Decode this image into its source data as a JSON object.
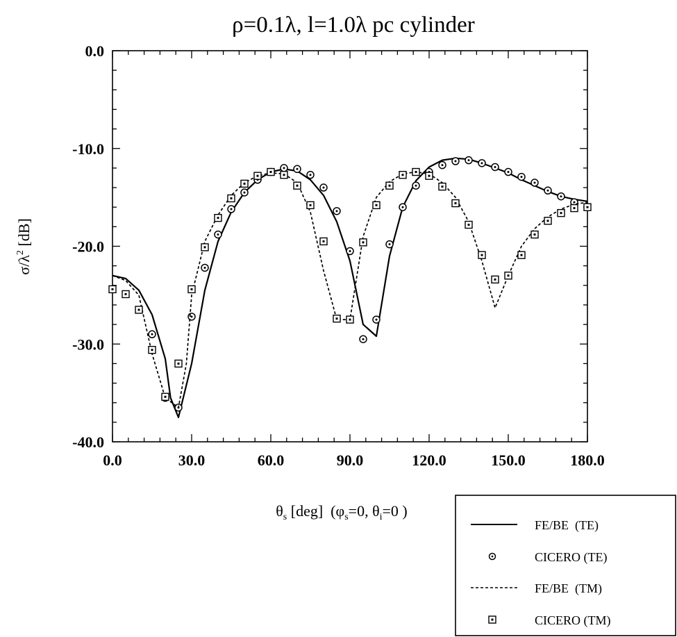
{
  "chart_data": {
    "type": "line",
    "title": "ρ=0.1λ, l=1.0λ pc cylinder",
    "xlabel": {
      "main": "θ",
      "main_sub": "s",
      "unit": " [deg]  (",
      "phi": "φ",
      "phi_sub": "s",
      "phi_eq": "=0, ",
      "theta": "θ",
      "theta_sub": "i",
      "theta_eq": "=0 )"
    },
    "ylabel": {
      "base": "σ/λ",
      "sup": "2",
      "unit": " [dB]"
    },
    "xlim": [
      0,
      180
    ],
    "ylim": [
      -40,
      0
    ],
    "x_ticks": [
      0,
      30,
      60,
      90,
      120,
      150,
      180
    ],
    "x_tick_labels": [
      "0.0",
      "30.0",
      "60.0",
      "90.0",
      "120.0",
      "150.0",
      "180.0"
    ],
    "y_ticks": [
      0,
      -10,
      -20,
      -30,
      -40
    ],
    "y_tick_labels": [
      "0.0",
      "-10.0",
      "-20.0",
      "-30.0",
      "-40.0"
    ],
    "grid": false,
    "legend_position": "bottom-right, outside plot",
    "series": [
      {
        "name": "FE/BE  (TE)",
        "style": "solid",
        "color": "#000000",
        "x": [
          0,
          5,
          10,
          15,
          20,
          22,
          25,
          30,
          35,
          40,
          45,
          50,
          55,
          60,
          65,
          70,
          75,
          80,
          85,
          90,
          95,
          100,
          105,
          110,
          115,
          120,
          125,
          130,
          135,
          140,
          145,
          150,
          155,
          160,
          165,
          170,
          175,
          180
        ],
        "y": [
          -23.0,
          -23.3,
          -24.5,
          -27.0,
          -31.5,
          -35.5,
          -37.5,
          -32.0,
          -24.5,
          -19.5,
          -16.5,
          -14.5,
          -13.2,
          -12.4,
          -12.1,
          -12.3,
          -13.2,
          -14.8,
          -17.5,
          -21.5,
          -28.0,
          -29.2,
          -21.0,
          -16.0,
          -13.3,
          -11.9,
          -11.2,
          -11.0,
          -11.1,
          -11.5,
          -12.0,
          -12.5,
          -13.2,
          -13.8,
          -14.4,
          -14.9,
          -15.2,
          -15.4
        ]
      },
      {
        "name": "CICERO (TE)",
        "style": "circle-marker",
        "color": "#000000",
        "x": [
          15,
          20,
          25,
          30,
          35,
          40,
          45,
          50,
          55,
          60,
          65,
          70,
          75,
          80,
          85,
          90,
          95,
          100,
          105,
          110,
          115,
          120,
          125,
          130,
          135,
          140,
          145,
          150,
          155,
          160,
          165,
          170,
          175
        ],
        "y": [
          -29.0,
          -35.5,
          -36.5,
          -27.2,
          -22.2,
          -18.8,
          -16.2,
          -14.5,
          -13.2,
          -12.4,
          -12.0,
          -12.1,
          -12.7,
          -14.0,
          -16.4,
          -20.5,
          -29.5,
          -27.5,
          -19.8,
          -16.0,
          -13.8,
          -12.4,
          -11.7,
          -11.3,
          -11.2,
          -11.5,
          -11.9,
          -12.4,
          -12.9,
          -13.5,
          -14.3,
          -14.9,
          -15.5
        ]
      },
      {
        "name": "FE/BE  (TM)",
        "style": "dashed",
        "color": "#000000",
        "x": [
          0,
          5,
          10,
          15,
          20,
          25,
          28,
          30,
          35,
          40,
          45,
          50,
          55,
          60,
          65,
          70,
          75,
          80,
          85,
          90,
          95,
          100,
          105,
          110,
          115,
          120,
          125,
          130,
          135,
          140,
          145,
          150,
          155,
          160,
          165,
          170,
          175,
          180
        ],
        "y": [
          -23.0,
          -23.5,
          -25.0,
          -31.0,
          -35.5,
          -36.5,
          -32.0,
          -25.0,
          -19.5,
          -16.8,
          -14.8,
          -13.5,
          -12.8,
          -12.5,
          -12.6,
          -13.5,
          -16.5,
          -22.5,
          -27.5,
          -27.5,
          -19.0,
          -15.0,
          -13.4,
          -12.6,
          -12.4,
          -12.6,
          -13.5,
          -15.0,
          -17.5,
          -21.5,
          -26.3,
          -23.0,
          -20.0,
          -18.2,
          -17.0,
          -16.2,
          -15.7,
          -15.5
        ]
      },
      {
        "name": "CICERO (TM)",
        "style": "square-marker",
        "color": "#000000",
        "x": [
          0,
          5,
          10,
          15,
          20,
          25,
          30,
          35,
          40,
          45,
          50,
          55,
          60,
          65,
          70,
          75,
          80,
          85,
          90,
          95,
          100,
          105,
          110,
          115,
          120,
          125,
          130,
          135,
          140,
          145,
          150,
          155,
          160,
          165,
          170,
          175,
          180
        ],
        "y": [
          -24.4,
          -24.9,
          -26.5,
          -30.6,
          -35.4,
          -32.0,
          -24.4,
          -20.1,
          -17.1,
          -15.1,
          -13.6,
          -12.8,
          -12.4,
          -12.7,
          -13.8,
          -15.8,
          -19.5,
          -27.4,
          -27.5,
          -19.6,
          -15.8,
          -13.8,
          -12.7,
          -12.4,
          -12.8,
          -13.9,
          -15.6,
          -17.8,
          -20.9,
          -23.4,
          -23.0,
          -20.9,
          -18.8,
          -17.4,
          -16.6,
          -16.1,
          -16.0
        ]
      }
    ]
  }
}
